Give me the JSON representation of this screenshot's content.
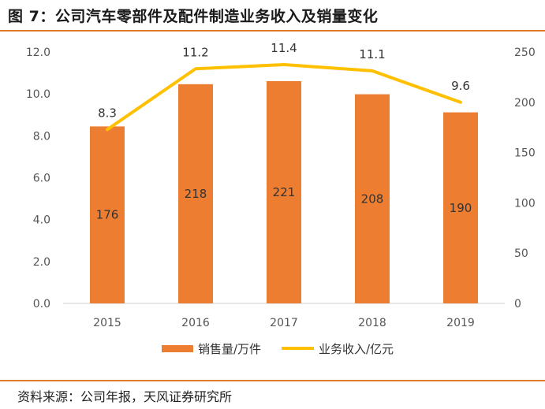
{
  "title": "图 7：公司汽车零部件及配件制造业务收入及销量变化",
  "source": "资料来源：公司年报，天风证券研究所",
  "colors": {
    "bar": "#ED7D31",
    "line": "#FFC000",
    "rule": "#E07B2E"
  },
  "chart_data": {
    "type": "bar+line",
    "categories": [
      "2015",
      "2016",
      "2017",
      "2018",
      "2019"
    ],
    "series": [
      {
        "name": "销售量/万件",
        "type": "bar",
        "axis": "right",
        "values": [
          176,
          218,
          221,
          208,
          190
        ]
      },
      {
        "name": "业务收入/亿元",
        "type": "line",
        "axis": "left",
        "values": [
          8.3,
          11.2,
          11.4,
          11.1,
          9.6
        ]
      }
    ],
    "y_left": {
      "min": 0,
      "max": 12,
      "ticks": [
        "0.0",
        "2.0",
        "4.0",
        "6.0",
        "8.0",
        "10.0",
        "12.0"
      ]
    },
    "y_right": {
      "min": 0,
      "max": 250,
      "ticks": [
        "0",
        "50",
        "100",
        "150",
        "200",
        "250"
      ]
    },
    "grid": false,
    "legend_position": "bottom"
  }
}
